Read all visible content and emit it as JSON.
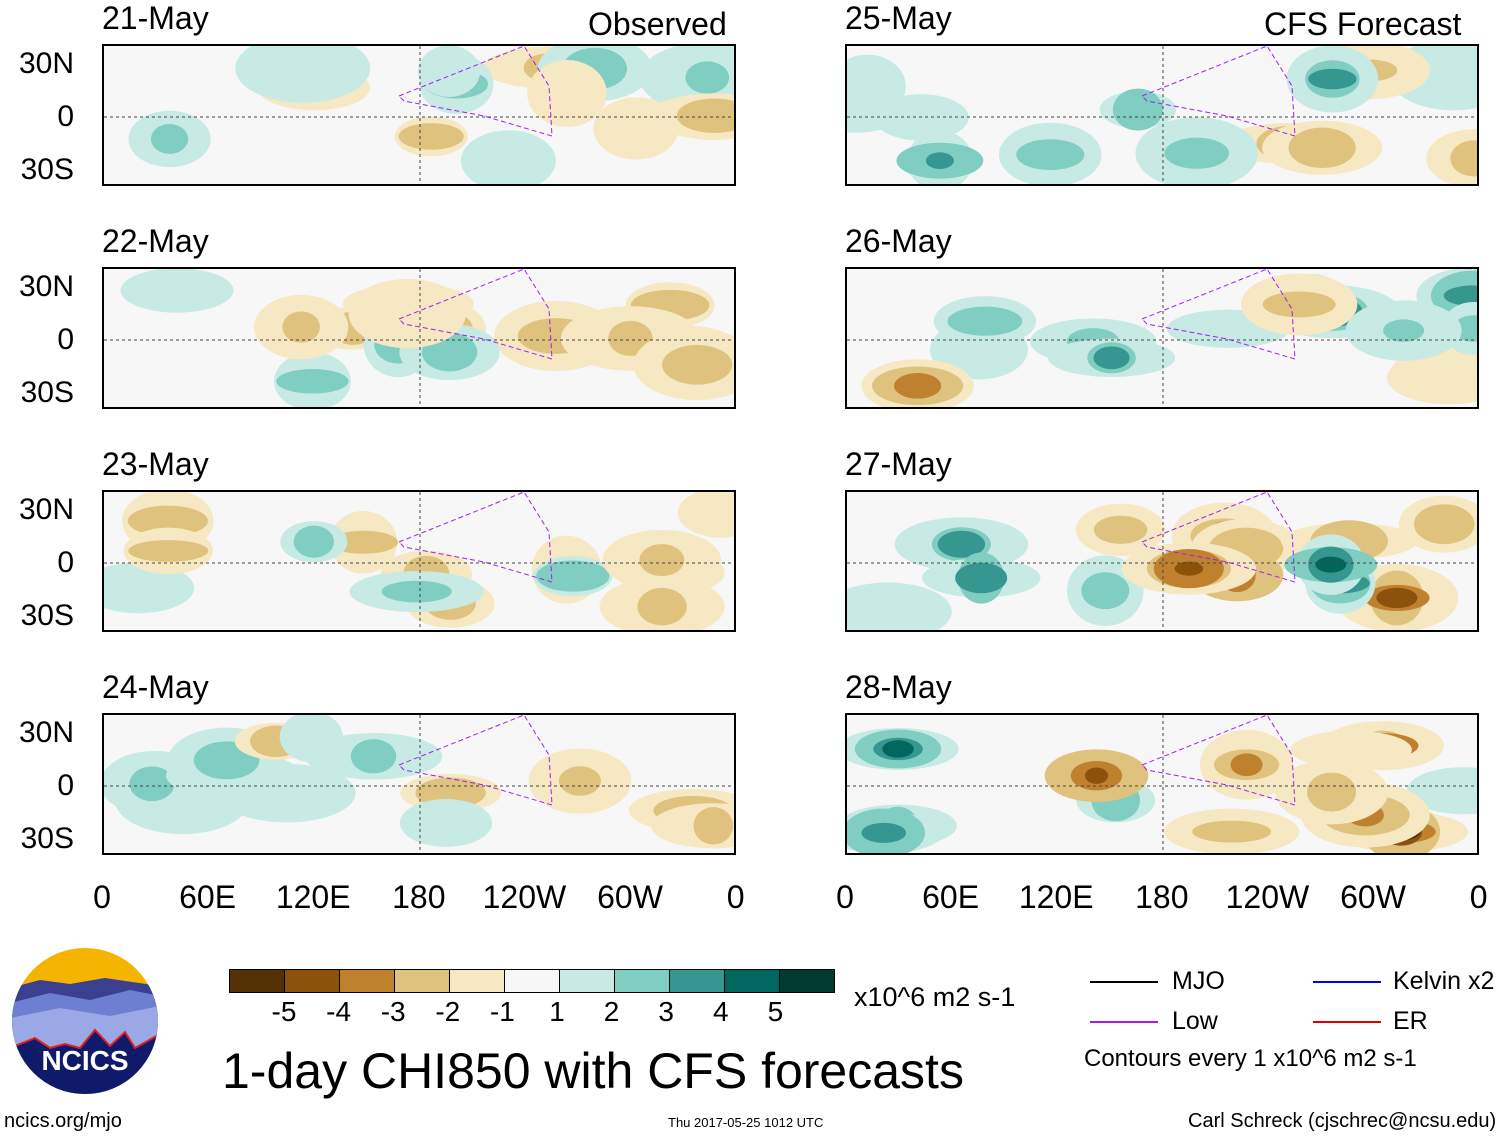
{
  "chart_data": {
    "type": "heatmap",
    "title": "1-day CHI850 with CFS forecasts",
    "units": "x10^6 m2 s-1",
    "column_labels": {
      "left": "Observed",
      "right": "CFS Forecast"
    },
    "panels": {
      "observed": [
        "21-May",
        "22-May",
        "23-May",
        "24-May"
      ],
      "forecast": [
        "25-May",
        "26-May",
        "27-May",
        "28-May"
      ]
    },
    "lat_ticks": [
      "30N",
      "0",
      "30S"
    ],
    "lon_ticks": [
      "0",
      "60E",
      "120E",
      "180",
      "120W",
      "60W",
      "0"
    ],
    "colorbar": {
      "levels": [
        "-5",
        "-4",
        "-3",
        "-2",
        "-1",
        "1",
        "2",
        "3",
        "4",
        "5"
      ],
      "colors": [
        "#543005",
        "#8c510a",
        "#bf812d",
        "#dfc27d",
        "#f6e8c3",
        "#f7f7f7",
        "#c7eae5",
        "#80cdc1",
        "#35978f",
        "#01665e",
        "#003c30"
      ]
    },
    "legend": {
      "items": [
        {
          "label": "MJO",
          "color": "#000000"
        },
        {
          "label": "Kelvin x2",
          "color": "#0000ff"
        },
        {
          "label": "Low",
          "color": "#a020f0"
        },
        {
          "label": "ER",
          "color": "#dd0000"
        }
      ],
      "contour_note": "Contours every 1 x10^6 m2 s-1"
    }
  },
  "footer": {
    "logo_text": "NCICS",
    "site": "ncics.org/mjo",
    "timestamp": "Thu 2017-05-25 1012 UTC",
    "author": "Carl Schreck (cjschrec@ncsu.edu)"
  }
}
